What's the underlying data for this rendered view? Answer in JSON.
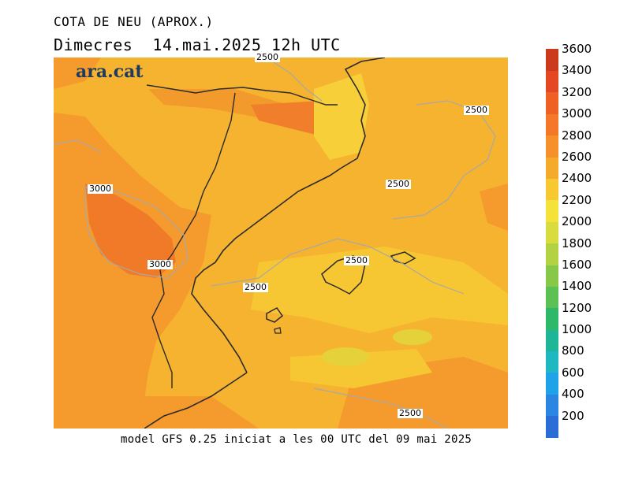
{
  "header": {
    "title": "COTA DE NEU (APROX.)",
    "subtitle": "Dimecres  14.mai.2025 12h UTC"
  },
  "footer": {
    "text": "model GFS 0.25 iniciat a les 00 UTC del 09 mai 2025"
  },
  "logo": {
    "text": "ara.cat"
  },
  "map": {
    "contour_labels": [
      "2500",
      "2500",
      "3000",
      "2500",
      "2500",
      "2500",
      "3000",
      "2500"
    ],
    "base_color": "#f5b42e"
  },
  "legend": {
    "title": "",
    "levels": [
      "200",
      "400",
      "600",
      "800",
      "1000",
      "1200",
      "1400",
      "1600",
      "1800",
      "2000",
      "2200",
      "2400",
      "2600",
      "2800",
      "3000",
      "3200",
      "3400",
      "3600"
    ],
    "colors": [
      "#2a6dd6",
      "#2b86e3",
      "#1fa3e8",
      "#1fb7c2",
      "#1fb598",
      "#2db86a",
      "#5cc052",
      "#88c849",
      "#b2d243",
      "#d8dc3c",
      "#f4e23a",
      "#f8c830",
      "#f6aa2c",
      "#f5902a",
      "#f47828",
      "#ef6025",
      "#e44822",
      "#cc3a1e"
    ]
  }
}
